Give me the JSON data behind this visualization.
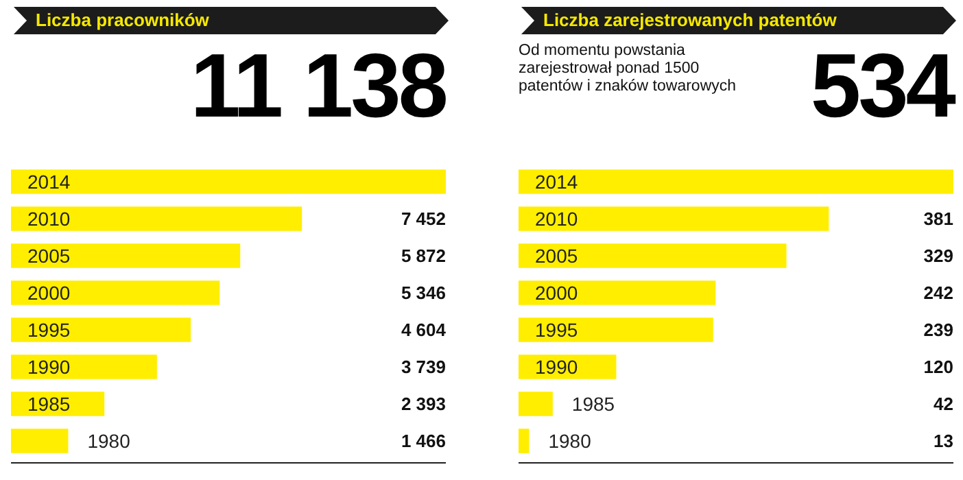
{
  "chart_data": [
    {
      "type": "bar",
      "orientation": "horizontal",
      "title": "Liczba pracowników",
      "annotations": [
        "11 138"
      ],
      "categories": [
        "2014",
        "2010",
        "2005",
        "2000",
        "1995",
        "1990",
        "1985",
        "1980"
      ],
      "values": [
        11138,
        7452,
        5872,
        5346,
        4604,
        3739,
        2393,
        1466
      ],
      "value_labels": [
        null,
        "7 452",
        "5 872",
        "5 346",
        "4 604",
        "3 739",
        "2 393",
        "1 466"
      ],
      "color": "#ffee00"
    },
    {
      "type": "bar",
      "orientation": "horizontal",
      "title": "Liczba zarejestrowanych patentów",
      "subtitle": "Od momentu powstania zarejestrował ponad 1500 patentów i znaków towarowych",
      "annotations": [
        "534"
      ],
      "categories": [
        "2014",
        "2010",
        "2005",
        "2000",
        "1995",
        "1990",
        "1985",
        "1980"
      ],
      "values": [
        534,
        381,
        329,
        242,
        239,
        120,
        42,
        13
      ],
      "value_labels": [
        null,
        "381",
        "329",
        "242",
        "239",
        "120",
        "42",
        "13"
      ],
      "color": "#ffee00"
    }
  ]
}
